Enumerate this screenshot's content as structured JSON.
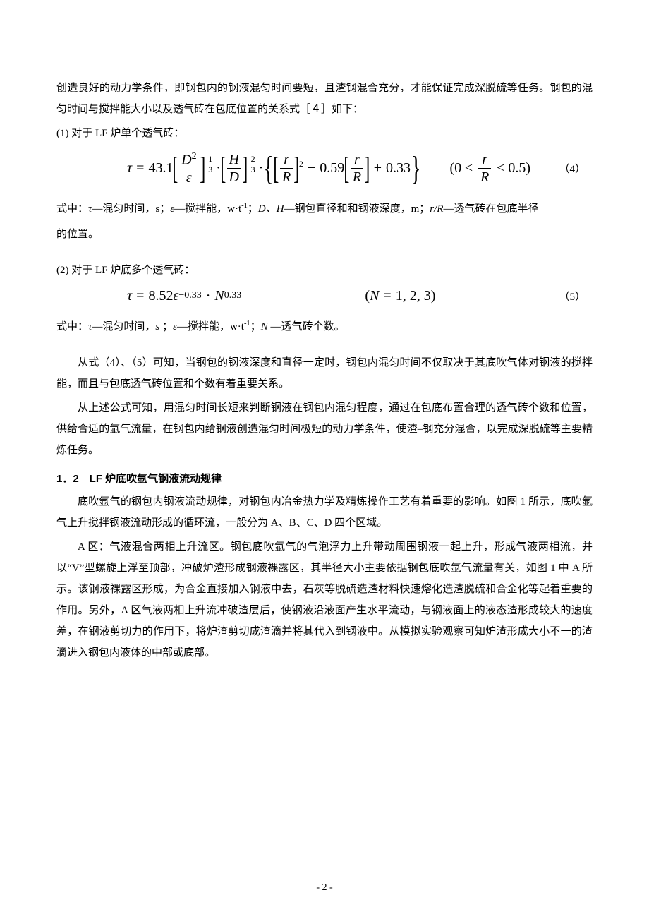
{
  "p1": "创造良好的动力学条件，即钢包内的钢液混匀时间要短，且渣钢混合充分，才能保证完成深脱硫等任务。钢包的混匀时间与搅拌能大小以及透气砖在包底位置的关系式［４］如下：",
  "item1": "(1) 对于 LF 炉单个透气砖：",
  "eq4": {
    "tau": "τ",
    "coef": "43.1",
    "D": "D",
    "eps": "ε",
    "exp1_num": "1",
    "exp1_den": "3",
    "H": "H",
    "exp2_num": "2",
    "exp2_den": "3",
    "r": "r",
    "R": "R",
    "inner_exp": "2",
    "c2": "0.59",
    "c3": "0.33",
    "cond_pre": "(0 ≤",
    "cond_post": "≤ 0.5)",
    "num": "（4）"
  },
  "expl4_a": "式中：",
  "expl4_b": "—混匀时间，s；",
  "expl4_c": "—搅拌能，w·t",
  "expl4_c2": "；",
  "expl4_d": "—钢包直径和和钢液深度，m；",
  "expl4_e": "—透气砖在包底半径",
  "expl4_f": "的位置。",
  "item2": "(2) 对于 LF 炉底多个透气砖：",
  "eq5": {
    "tau": "τ",
    "coef": "8.52",
    "eps": "ε",
    "exp1": "−0.33",
    "N": "N",
    "exp2": "0.33",
    "cond": "(N = 1, 2, 3)",
    "num": "（5）"
  },
  "expl5_a": "式中：",
  "expl5_b": "—混匀时间，",
  "expl5_c": "；",
  "expl5_d": "—搅拌能，w·t",
  "expl5_d2": "；",
  "expl5_e": " —透气砖个数。",
  "p2": "从式（4）、（5）可知，当钢包的钢液深度和直径一定时，钢包内混匀时间不仅取决于其底吹气体对钢液的搅拌能，而且与包底透气砖位置和个数有着重要关系。",
  "p3": "从上述公式可知，用混匀时间长短来判断钢液在钢包内混匀程度，通过在包底布置合理的透气砖个数和位置，供给合适的氩气流量，在钢包内给钢液创造混匀时间极短的动力学条件，使渣–钢充分混合，以完成深脱硫等主要精炼任务。",
  "sec12": "1．2　LF 炉底吹氩气钢液流动规律",
  "p4": "底吹氩气的钢包内钢液流动规律，对钢包内冶金热力学及精炼操作工艺有着重要的影响。如图 1 所示，底吹氩气上升搅拌钢液流动形成的循环流，一般分为 A、B、C、D 四个区域。",
  "p5": "A 区：气液混合两相上升流区。钢包底吹氩气的气泡浮力上升带动周围钢液一起上升，形成气液两相流，并以“V”型螺旋上浮至顶部，冲破炉渣形成钢液裸露区，其半径大小主要依据钢包底吹氩气流量有关，如图 1 中 A 所示。该钢液裸露区形成，为合金直接加入钢液中去，石灰等脱硫造渣材料快速熔化造渣脱硫和合金化等起着重要的作用。另外，A 区气液两相上升流冲破渣层后，使钢液沿液面产生水平流动，与钢液面上的液态渣形成较大的速度差，在钢液剪切力的作用下，将炉渣剪切成渣滴并将其代入到钢液中。从模拟实验观察可知炉渣形成大小不一的渣滴进入钢包内液体的中部或底部。",
  "pagenum": "- 2 -",
  "sym": {
    "tau": "τ",
    "eps": "ε",
    "D": "D",
    "H": "H",
    "rR": "r/R",
    "s_it": "s",
    "N": "N",
    "DH": "D、H"
  }
}
